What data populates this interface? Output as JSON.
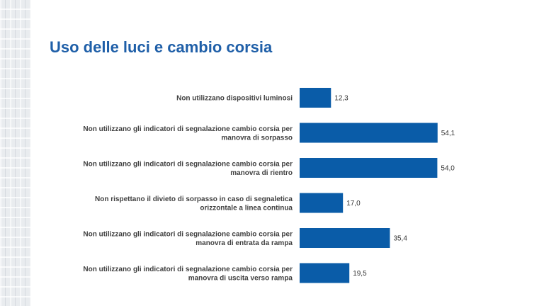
{
  "page": {
    "title": "Uso delle luci e cambio corsia"
  },
  "chart_data": {
    "type": "bar",
    "orientation": "horizontal",
    "title": "",
    "xlabel": "",
    "ylabel": "",
    "xlim": [
      0,
      60
    ],
    "grid": false,
    "legend": "none",
    "bar_color": "#0a5ca8",
    "categories": [
      [
        "Non utilizzano dispositivi luminosi"
      ],
      [
        "Non utilizzano gli indicatori di segnalazione cambio corsia per",
        "manovra di sorpasso"
      ],
      [
        "Non utilizzano gli indicatori di segnalazione cambio corsia per",
        "manovra di rientro"
      ],
      [
        "Non rispettano il divieto di sorpasso in caso di segnaletica",
        "orizzontale a linea continua"
      ],
      [
        "Non utilizzano gli indicatori di segnalazione cambio corsia per",
        "manovra di entrata da rampa"
      ],
      [
        "Non utilizzano gli indicatori di segnalazione cambio corsia per",
        "manovra di uscita verso rampa"
      ]
    ],
    "values": [
      12.3,
      54.1,
      54.0,
      17.0,
      35.4,
      19.5
    ],
    "value_labels": [
      "12,3",
      "54,1",
      "54,0",
      "17,0",
      "35,4",
      "19,5"
    ]
  }
}
